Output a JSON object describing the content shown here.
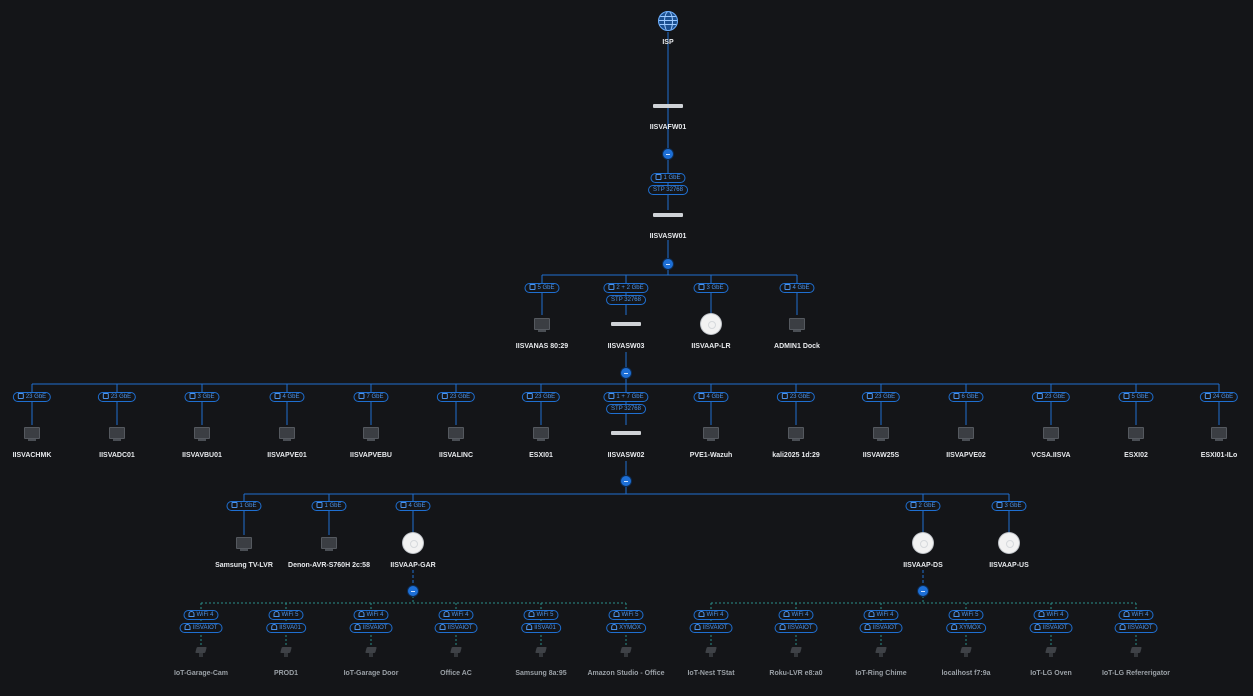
{
  "isp": {
    "label": "ISP"
  },
  "firewall": {
    "name": "IISVAFW01"
  },
  "core_switch": {
    "name": "IISVASW01",
    "port_badge": "1 GbE",
    "stp_badge": "STP 32768"
  },
  "level2": [
    {
      "name": "IISVANAS 80:29",
      "badge": "5 GbE",
      "kind": "device"
    },
    {
      "name": "IISVASW03",
      "badge": "2 + 2 GbE",
      "stp": "STP 32768",
      "kind": "switch"
    },
    {
      "name": "IISVAAP-LR",
      "badge": "3 GbE",
      "kind": "ap"
    },
    {
      "name": "ADMIN1 Dock",
      "badge": "4 GbE",
      "kind": "device"
    }
  ],
  "level3": [
    {
      "name": "IISVACHMK",
      "badge": "23 GbE",
      "kind": "device"
    },
    {
      "name": "IISVADC01",
      "badge": "23 GbE",
      "kind": "device"
    },
    {
      "name": "IISVAVBU01",
      "badge": "3 GbE",
      "kind": "device"
    },
    {
      "name": "IISVAPVE01",
      "badge": "4 GbE",
      "kind": "device"
    },
    {
      "name": "IISVAPVEBU",
      "badge": "7 GbE",
      "kind": "device"
    },
    {
      "name": "IISVALINC",
      "badge": "23 GbE",
      "kind": "device"
    },
    {
      "name": "ESXI01",
      "badge": "23 GbE",
      "kind": "device"
    },
    {
      "name": "IISVASW02",
      "badge": "1 + 7 GbE",
      "stp": "STP 32768",
      "kind": "switch"
    },
    {
      "name": "PVE1-Wazuh",
      "badge": "4 GbE",
      "kind": "device"
    },
    {
      "name": "kali2025 1d:29",
      "badge": "23 GbE",
      "kind": "device"
    },
    {
      "name": "IISVAW25S",
      "badge": "23 GbE",
      "kind": "device"
    },
    {
      "name": "IISVAPVE02",
      "badge": "6 GbE",
      "kind": "device"
    },
    {
      "name": "VCSA.IISVA",
      "badge": "23 GbE",
      "kind": "device"
    },
    {
      "name": "ESXI02",
      "badge": "5 GbE",
      "kind": "device"
    },
    {
      "name": "ESXI01-ILo",
      "badge": "24 GbE",
      "kind": "device"
    }
  ],
  "level4": [
    {
      "name": "Samsung TV-LVR",
      "badge": "1 GbE",
      "kind": "device"
    },
    {
      "name": "Denon-AVR-S760H 2c:58",
      "badge": "1 GbE",
      "kind": "device"
    },
    {
      "name": "IISVAAP-GAR",
      "badge": "4 GbE",
      "kind": "ap"
    },
    {
      "name": "IISVAAP-DS",
      "badge": "2 GbE",
      "kind": "ap"
    },
    {
      "name": "IISVAAP-US",
      "badge": "3 GbE",
      "kind": "ap"
    }
  ],
  "clients_gar": [
    {
      "name": "IoT-Garage-Cam",
      "wifi": "WiFi 4",
      "ssid": "IISVAIOT"
    },
    {
      "name": "PROD1",
      "wifi": "WiFi 5",
      "ssid": "IISVA01"
    },
    {
      "name": "IoT-Garage Door",
      "wifi": "WiFi 4",
      "ssid": "IISVAIOT"
    },
    {
      "name": "Office AC",
      "wifi": "WiFi 4",
      "ssid": "IISVAIOT"
    },
    {
      "name": "Samsung 8a:95",
      "wifi": "WiFi 5",
      "ssid": "IISVA01"
    },
    {
      "name": "Amazon Studio - Office",
      "wifi": "WiFi 5",
      "ssid": "XYMOX"
    }
  ],
  "clients_ds": [
    {
      "name": "IoT-Nest TStat",
      "wifi": "WiFi 4",
      "ssid": "IISVAIOT"
    },
    {
      "name": "Roku-LVR e8:a0",
      "wifi": "WiFi 4",
      "ssid": "IISVAIOT"
    },
    {
      "name": "IoT-Ring Chime",
      "wifi": "WiFi 4",
      "ssid": "IISVAIOT"
    },
    {
      "name": "localhost f7:9a",
      "wifi": "WiFi 5",
      "ssid": "XYMOX"
    },
    {
      "name": "IoT-LG Oven",
      "wifi": "WiFi 4",
      "ssid": "IISVAIOT"
    },
    {
      "name": "IoT-LG Refererigator",
      "wifi": "WiFi 4",
      "ssid": "IISVAIOT"
    }
  ],
  "colors": {
    "link": "#1f6fd1",
    "wifi_link": "#2a8f8a",
    "background": "#141518"
  }
}
